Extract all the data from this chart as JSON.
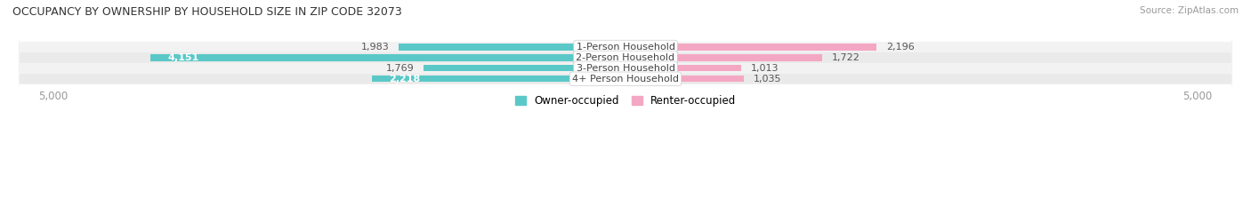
{
  "title": "OCCUPANCY BY OWNERSHIP BY HOUSEHOLD SIZE IN ZIP CODE 32073",
  "source": "Source: ZipAtlas.com",
  "categories": [
    "1-Person Household",
    "2-Person Household",
    "3-Person Household",
    "4+ Person Household"
  ],
  "owner_values": [
    1983,
    4151,
    1769,
    2218
  ],
  "renter_values": [
    2196,
    1722,
    1013,
    1035
  ],
  "max_scale": 5000,
  "owner_color": "#5BC8C8",
  "renter_color": "#F4A7C3",
  "row_bg_colors": [
    "#EFEFEF",
    "#EFEFEF",
    "#EFEFEF",
    "#EFEFEF"
  ],
  "title_color": "#333333",
  "axis_label_color": "#999999",
  "value_color": "#555555",
  "legend_owner": "Owner-occupied",
  "legend_renter": "Renter-occupied",
  "figsize": [
    14.06,
    2.33
  ],
  "dpi": 100
}
